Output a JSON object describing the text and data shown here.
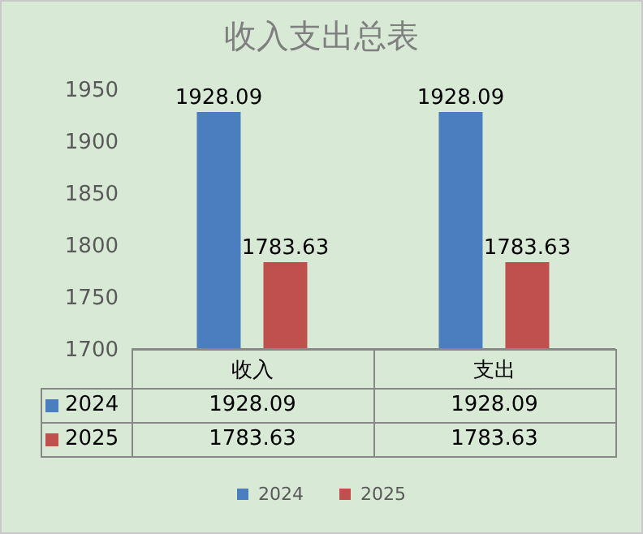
{
  "chart_data": {
    "type": "bar",
    "title": "收入支出总表",
    "categories": [
      "收入",
      "支出"
    ],
    "series": [
      {
        "name": "2024",
        "color": "#4a7ebf",
        "values": [
          1928.09,
          1928.09
        ],
        "value_labels": [
          "1928.09",
          "1928.09"
        ]
      },
      {
        "name": "2025",
        "color": "#c0504d",
        "values": [
          1783.63,
          1783.63
        ],
        "value_labels": [
          "1783.63",
          "1783.63"
        ]
      }
    ],
    "ylim": [
      1700,
      1950
    ],
    "yticks": [
      1700,
      1750,
      1800,
      1850,
      1900,
      1950
    ],
    "legend": "bottom"
  }
}
